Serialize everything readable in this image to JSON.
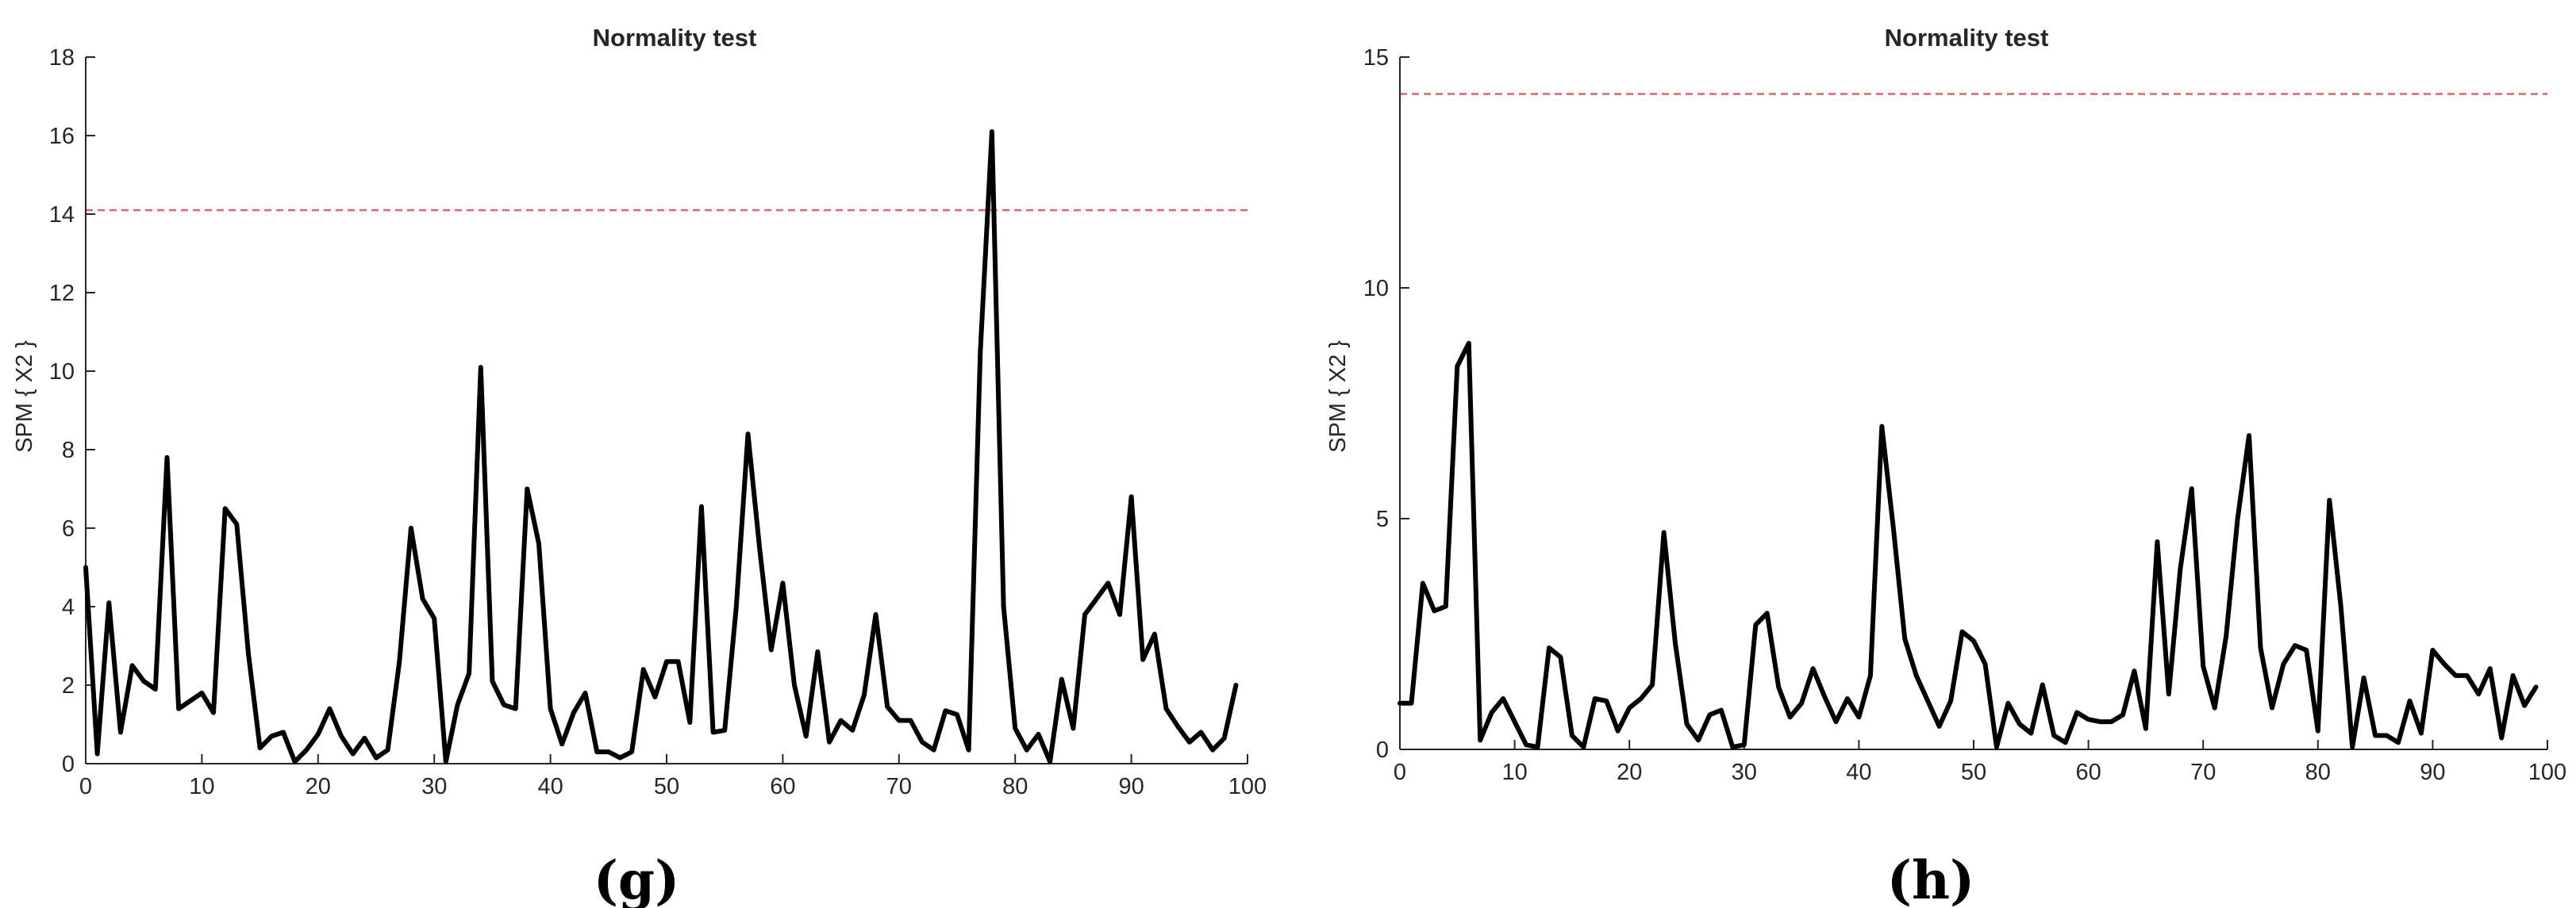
{
  "chart_data": [
    {
      "type": "line",
      "panel_label": "(g)",
      "title": "Normality test",
      "xlabel": "",
      "ylabel": "SPM { X2 }",
      "xlim": [
        0,
        100
      ],
      "ylim": [
        0,
        18
      ],
      "xticks": [
        0,
        10,
        20,
        30,
        40,
        50,
        60,
        70,
        80,
        90,
        100
      ],
      "yticks": [
        0,
        2,
        4,
        6,
        8,
        10,
        12,
        14,
        16,
        18
      ],
      "threshold": 14.1,
      "threshold_color": "#e8625a",
      "line_color": "#000000",
      "grid": false,
      "series": [
        {
          "x": [
            0,
            1,
            2,
            3,
            4,
            5,
            6,
            7,
            8,
            9,
            10,
            11,
            12,
            13,
            14,
            15,
            16,
            17,
            18,
            19,
            20,
            21,
            22,
            23,
            24,
            25,
            26,
            27,
            28,
            29,
            30,
            31,
            32,
            33,
            34,
            35,
            36,
            37,
            38,
            39,
            40,
            41,
            42,
            43,
            44,
            45,
            46,
            47,
            48,
            49,
            50,
            51,
            52,
            53,
            54,
            55,
            56,
            57,
            58,
            59,
            60,
            61,
            62,
            63,
            64,
            65,
            66,
            67,
            68,
            69,
            70,
            71,
            72,
            73,
            74,
            75,
            76,
            77,
            78,
            79,
            80,
            81,
            82,
            83,
            84,
            85,
            86,
            87,
            88,
            89,
            90,
            91,
            92,
            93,
            94,
            95,
            96,
            97,
            98,
            99
          ],
          "values": [
            5.0,
            0.25,
            4.1,
            0.8,
            2.5,
            2.1,
            1.9,
            7.8,
            1.4,
            1.6,
            1.8,
            1.3,
            6.5,
            6.1,
            2.8,
            0.4,
            0.7,
            0.8,
            0.05,
            0.35,
            0.75,
            1.4,
            0.7,
            0.25,
            0.65,
            0.15,
            0.35,
            2.6,
            6.0,
            4.2,
            3.7,
            0.05,
            1.5,
            2.3,
            10.1,
            2.1,
            1.5,
            1.4,
            7.0,
            5.6,
            1.4,
            0.5,
            1.3,
            1.8,
            0.3,
            0.3,
            0.15,
            0.3,
            2.4,
            1.7,
            2.6,
            2.6,
            1.05,
            6.55,
            0.8,
            0.85,
            4.0,
            8.4,
            5.5,
            2.9,
            4.6,
            2.0,
            0.7,
            2.85,
            0.55,
            1.1,
            0.85,
            1.75,
            3.8,
            1.45,
            1.1,
            1.1,
            0.55,
            0.35,
            1.35,
            1.25,
            0.35,
            10.5,
            16.1,
            4.0,
            0.9,
            0.35,
            0.75,
            0.05,
            2.15,
            0.9,
            3.8,
            4.2,
            4.6,
            3.8,
            6.8,
            2.65,
            3.3,
            1.4,
            0.95,
            0.55,
            0.8,
            0.35,
            0.65,
            2.0
          ]
        }
      ]
    },
    {
      "type": "line",
      "panel_label": "(h)",
      "title": "Normality test",
      "xlabel": "",
      "ylabel": "SPM { X2 }",
      "xlim": [
        0,
        100
      ],
      "ylim": [
        0,
        15
      ],
      "xticks": [
        0,
        10,
        20,
        30,
        40,
        50,
        60,
        70,
        80,
        90,
        100
      ],
      "yticks": [
        0,
        5,
        10,
        15
      ],
      "threshold": 14.2,
      "threshold_color": "#e8625a",
      "line_color": "#000000",
      "grid": false,
      "series": [
        {
          "x": [
            0,
            1,
            2,
            3,
            4,
            5,
            6,
            7,
            8,
            9,
            10,
            11,
            12,
            13,
            14,
            15,
            16,
            17,
            18,
            19,
            20,
            21,
            22,
            23,
            24,
            25,
            26,
            27,
            28,
            29,
            30,
            31,
            32,
            33,
            34,
            35,
            36,
            37,
            38,
            39,
            40,
            41,
            42,
            43,
            44,
            45,
            46,
            47,
            48,
            49,
            50,
            51,
            52,
            53,
            54,
            55,
            56,
            57,
            58,
            59,
            60,
            61,
            62,
            63,
            64,
            65,
            66,
            67,
            68,
            69,
            70,
            71,
            72,
            73,
            74,
            75,
            76,
            77,
            78,
            79,
            80,
            81,
            82,
            83,
            84,
            85,
            86,
            87,
            88,
            89,
            90,
            91,
            92,
            93,
            94,
            95,
            96,
            97,
            98,
            99
          ],
          "values": [
            1.0,
            1.0,
            3.6,
            3.0,
            3.1,
            8.3,
            8.8,
            0.2,
            0.8,
            1.1,
            0.6,
            0.1,
            0.05,
            2.2,
            2.0,
            0.3,
            0.05,
            1.1,
            1.05,
            0.4,
            0.9,
            1.1,
            1.4,
            4.7,
            2.3,
            0.55,
            0.2,
            0.75,
            0.85,
            0.05,
            0.1,
            2.7,
            2.95,
            1.35,
            0.7,
            1.0,
            1.75,
            1.15,
            0.6,
            1.1,
            0.7,
            1.6,
            7.0,
            4.8,
            2.4,
            1.6,
            1.05,
            0.5,
            1.05,
            2.55,
            2.35,
            1.85,
            0.05,
            1.0,
            0.55,
            0.35,
            1.4,
            0.3,
            0.15,
            0.8,
            0.65,
            0.6,
            0.6,
            0.75,
            1.7,
            0.45,
            4.5,
            1.2,
            3.9,
            5.65,
            1.8,
            0.9,
            2.45,
            5.0,
            6.8,
            2.2,
            0.9,
            1.85,
            2.25,
            2.15,
            0.4,
            5.4,
            3.1,
            0.05,
            1.55,
            0.3,
            0.3,
            0.15,
            1.05,
            0.35,
            2.15,
            1.85,
            1.6,
            1.6,
            1.2,
            1.75,
            0.25,
            1.6,
            0.95,
            1.35
          ]
        }
      ]
    }
  ]
}
